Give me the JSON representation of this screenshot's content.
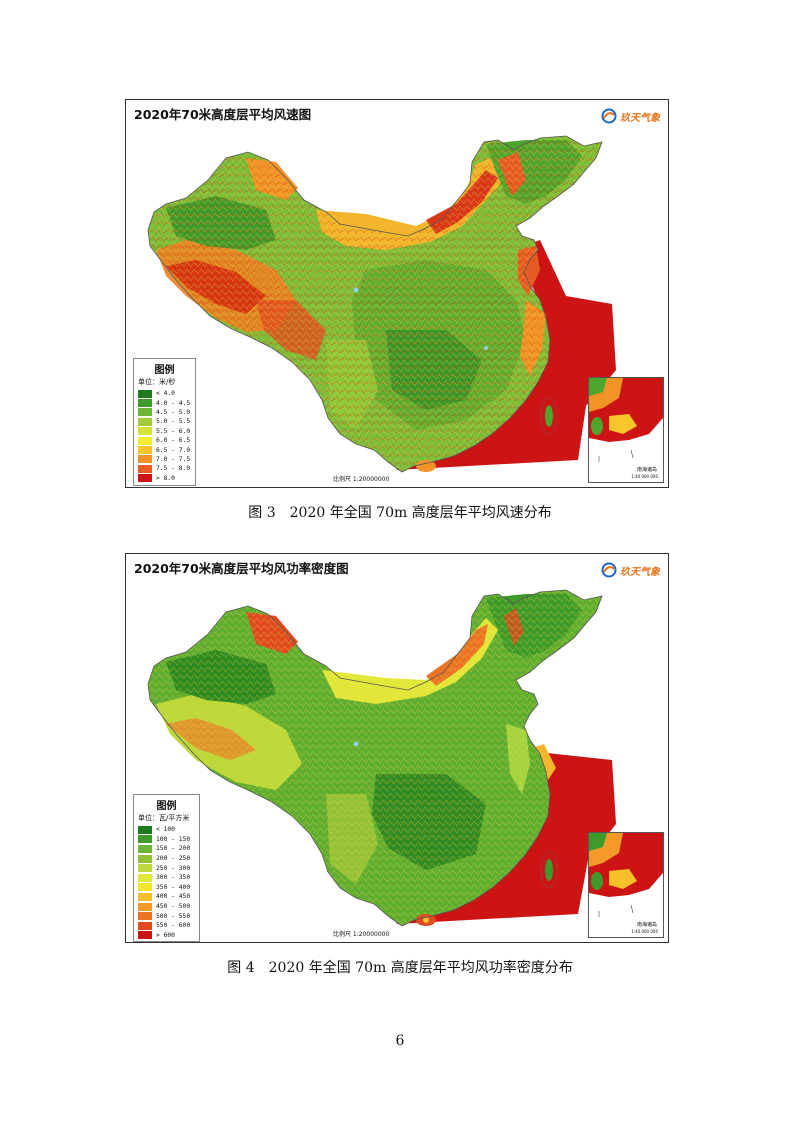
{
  "figures": [
    {
      "map_title": "2020年70米高度层平均风速图",
      "logo_text": "玖天气象",
      "legend_title": "图例",
      "unit": "单位：米/秒",
      "legend": [
        {
          "label": "< 4.0",
          "color": "#1e7a1e"
        },
        {
          "label": "4.0 - 4.5",
          "color": "#3e9a2a"
        },
        {
          "label": "4.5 - 5.0",
          "color": "#6db536"
        },
        {
          "label": "5.0 - 5.5",
          "color": "#a4cc3a"
        },
        {
          "label": "5.5 - 6.0",
          "color": "#d6e43a"
        },
        {
          "label": "6.0 - 6.5",
          "color": "#f4ec2e"
        },
        {
          "label": "6.5 - 7.0",
          "color": "#f7c62a"
        },
        {
          "label": "7.0 - 7.5",
          "color": "#f29327"
        },
        {
          "label": "7.5 - 8.0",
          "color": "#e85b23"
        },
        {
          "label": "> 8.0",
          "color": "#cc1414"
        }
      ],
      "scale": "比例尺 1:20000000",
      "inset_label": "南海诸岛",
      "inset_scale": "1:40 000 000",
      "caption": "图 3　2020 年全国 70m 高度层年平均风速分布"
    },
    {
      "map_title": "2020年70米高度层平均风功率密度图",
      "logo_text": "玖天气象",
      "legend_title": "图例",
      "unit": "单位：瓦/平方米",
      "legend": [
        {
          "label": "< 100",
          "color": "#1e7a1e"
        },
        {
          "label": "100 - 150",
          "color": "#3e9a2a"
        },
        {
          "label": "150 - 200",
          "color": "#6db536"
        },
        {
          "label": "200 - 250",
          "color": "#93c238"
        },
        {
          "label": "250 - 300",
          "color": "#bcd83a"
        },
        {
          "label": "300 - 350",
          "color": "#e2e83a"
        },
        {
          "label": "350 - 400",
          "color": "#f4e62c"
        },
        {
          "label": "400 - 450",
          "color": "#f7c02a"
        },
        {
          "label": "450 - 500",
          "color": "#f39a28"
        },
        {
          "label": "500 - 550",
          "color": "#ec7224"
        },
        {
          "label": "550 - 600",
          "color": "#e04a20"
        },
        {
          "label": "> 600",
          "color": "#cc1414"
        }
      ],
      "scale": "比例尺 1:20000000",
      "inset_label": "南海诸岛",
      "inset_scale": "1:40 000 000",
      "caption": "图 4　2020 年全国 70m 高度层年平均风功率密度分布"
    }
  ],
  "page_number": "6"
}
